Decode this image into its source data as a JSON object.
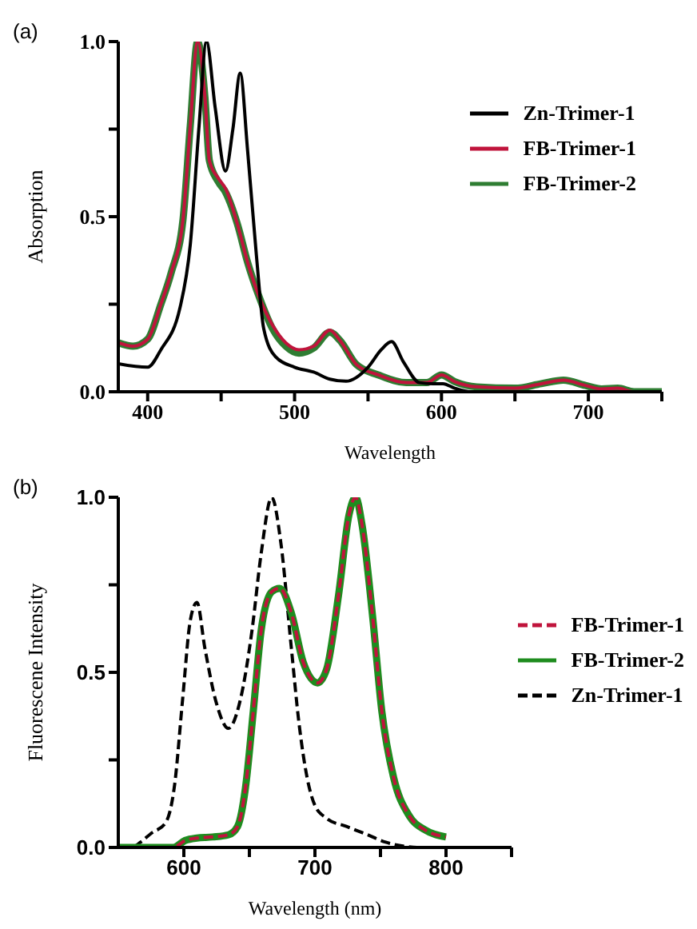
{
  "chart_data": [
    {
      "type": "line",
      "xlabel": "Wavelength",
      "ylabel": "Absorption",
      "annotations": [
        "(a)"
      ],
      "xlim": [
        380,
        750
      ],
      "xticks": [
        400,
        {
          "value": 450,
          "label": null
        },
        500,
        {
          "value": 550,
          "label": null
        },
        600,
        {
          "value": 650,
          "label": null
        },
        700,
        {
          "value": 750,
          "label": null
        }
      ],
      "ylim": [
        0,
        1
      ],
      "yticks": [
        {
          "value": 0,
          "label": "0.0"
        },
        {
          "value": 0.25,
          "label": null
        },
        {
          "value": 0.5,
          "label": "0.5"
        },
        {
          "value": 0.75,
          "label": null
        },
        {
          "value": 1,
          "label": "1.0"
        }
      ],
      "grid": false,
      "legend": "top right",
      "marker": "none",
      "series": [
        {
          "name": "Zn-Trimer-1",
          "color": "#000000",
          "line_style": "solid",
          "x": [
            380,
            400,
            409,
            422,
            429,
            435,
            440,
            446,
            453,
            458,
            463,
            468,
            474,
            479,
            487,
            500,
            513,
            524,
            535,
            550,
            559,
            566,
            574,
            585,
            594,
            601,
            609,
            620,
            650,
            700,
            750
          ],
          "values": [
            0.08,
            0.07,
            0.12,
            0.24,
            0.42,
            0.76,
            1.0,
            0.81,
            0.63,
            0.75,
            0.91,
            0.69,
            0.39,
            0.18,
            0.1,
            0.07,
            0.056,
            0.036,
            0.03,
            0.07,
            0.12,
            0.143,
            0.086,
            0.026,
            0.023,
            0.023,
            0.01,
            0,
            0,
            0,
            0
          ]
        },
        {
          "name": "FB-Trimer-1",
          "color": "#c0143c",
          "line_style": "solid",
          "x": [
            380,
            390,
            400,
            409,
            416,
            424,
            429,
            434,
            439,
            442,
            448,
            453,
            461,
            468,
            476,
            485,
            494,
            503,
            513,
            524,
            531,
            542,
            557,
            576,
            590,
            600,
            609,
            624,
            650,
            668,
            683,
            698,
            709,
            720,
            731,
            750
          ],
          "values": [
            0.14,
            0.13,
            0.15,
            0.25,
            0.34,
            0.49,
            0.76,
            1.0,
            0.84,
            0.66,
            0.61,
            0.58,
            0.48,
            0.37,
            0.27,
            0.19,
            0.14,
            0.12,
            0.13,
            0.176,
            0.146,
            0.078,
            0.048,
            0.026,
            0.026,
            0.048,
            0.029,
            0.014,
            0.01,
            0.023,
            0.033,
            0.018,
            0.008,
            0.01,
            0,
            0
          ]
        },
        {
          "name": "FB-Trimer-2",
          "color": "#2e7d32",
          "line_style": "solid",
          "x": [
            380,
            390,
            400,
            409,
            416,
            424,
            429,
            434,
            439,
            442,
            448,
            453,
            461,
            468,
            476,
            485,
            494,
            503,
            513,
            524,
            531,
            542,
            557,
            576,
            590,
            600,
            609,
            624,
            650,
            668,
            683,
            698,
            709,
            720,
            731,
            750
          ],
          "values": [
            0.14,
            0.13,
            0.15,
            0.25,
            0.34,
            0.49,
            0.76,
            1.0,
            0.84,
            0.66,
            0.6,
            0.57,
            0.48,
            0.37,
            0.27,
            0.18,
            0.13,
            0.11,
            0.125,
            0.17,
            0.146,
            0.078,
            0.048,
            0.026,
            0.026,
            0.048,
            0.029,
            0.014,
            0.01,
            0.023,
            0.033,
            0.018,
            0.008,
            0.01,
            0,
            0
          ]
        }
      ]
    },
    {
      "type": "line",
      "xlabel": "Wavelength (nm)",
      "ylabel": "Fluorescene Intensity",
      "annotations": [
        "(b)"
      ],
      "xlim": [
        550,
        850
      ],
      "xticks": [
        600,
        {
          "value": 650,
          "label": null
        },
        700,
        {
          "value": 750,
          "label": null
        },
        800,
        {
          "value": 850,
          "label": null
        }
      ],
      "ylim": [
        0,
        1
      ],
      "yticks": [
        {
          "value": 0,
          "label": "0.0"
        },
        {
          "value": 0.25,
          "label": null
        },
        {
          "value": 0.5,
          "label": "0.5"
        },
        {
          "value": 0.75,
          "label": null
        },
        {
          "value": 1,
          "label": "1.0"
        }
      ],
      "grid": false,
      "legend": "right",
      "marker": "none",
      "series": [
        {
          "name": "FB-Trimer-1",
          "color": "#c0143c",
          "line_style": "dashed",
          "x": [
            551,
            592,
            601,
            610,
            622,
            634,
            641,
            647,
            653,
            659,
            667,
            673,
            682,
            691,
            702,
            709,
            718,
            726,
            731,
            736,
            744,
            751,
            760,
            772,
            784,
            800
          ],
          "values": [
            0,
            0,
            0.02,
            0.027,
            0.03,
            0.036,
            0.06,
            0.17,
            0.39,
            0.62,
            0.73,
            0.74,
            0.67,
            0.53,
            0.47,
            0.51,
            0.72,
            0.95,
            1.0,
            0.92,
            0.66,
            0.39,
            0.2,
            0.09,
            0.05,
            0.03
          ]
        },
        {
          "name": "FB-Trimer-2",
          "color": "#1e8c1e",
          "line_style": "solid",
          "x": [
            551,
            592,
            601,
            610,
            622,
            634,
            641,
            647,
            653,
            659,
            667,
            673,
            682,
            691,
            702,
            709,
            718,
            726,
            731,
            736,
            744,
            751,
            760,
            772,
            784,
            800
          ],
          "values": [
            0,
            0,
            0.02,
            0.027,
            0.03,
            0.036,
            0.06,
            0.17,
            0.39,
            0.62,
            0.73,
            0.74,
            0.67,
            0.53,
            0.47,
            0.51,
            0.72,
            0.95,
            1.0,
            0.92,
            0.66,
            0.39,
            0.2,
            0.09,
            0.05,
            0.03
          ]
        },
        {
          "name": "Zn-Trimer-1",
          "color": "#000000",
          "line_style": "dashed",
          "x": [
            551,
            560,
            567,
            575,
            586,
            593,
            599,
            605,
            610,
            616,
            625,
            634,
            643,
            652,
            659,
            667,
            674,
            682,
            688,
            694,
            700,
            709,
            724,
            739,
            754,
            769,
            778,
            800
          ],
          "values": [
            0,
            0,
            0.015,
            0.04,
            0.07,
            0.18,
            0.42,
            0.65,
            0.7,
            0.57,
            0.41,
            0.34,
            0.42,
            0.62,
            0.84,
            1.0,
            0.87,
            0.57,
            0.35,
            0.2,
            0.12,
            0.083,
            0.06,
            0.038,
            0.015,
            0.003,
            0,
            0
          ]
        }
      ]
    }
  ]
}
